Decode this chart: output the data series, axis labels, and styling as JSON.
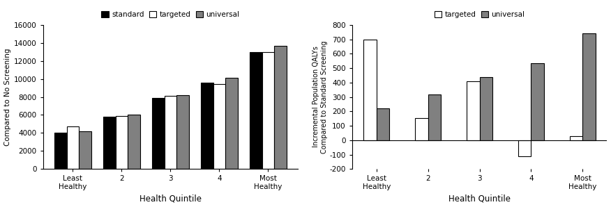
{
  "left": {
    "categories": [
      "Least\nHealthy",
      "2",
      "3",
      "4",
      "Most\nHealthy"
    ],
    "standard": [
      4000,
      5800,
      7900,
      9600,
      13000
    ],
    "targeted": [
      4700,
      5900,
      8100,
      9400,
      13000
    ],
    "universal": [
      4200,
      6000,
      8200,
      10100,
      13700
    ],
    "ylabel": "Compared to No Screening",
    "xlabel": "Health Quintile",
    "ylim": [
      0,
      16000
    ],
    "yticks": [
      0,
      2000,
      4000,
      6000,
      8000,
      10000,
      12000,
      14000,
      16000
    ],
    "legend_labels": [
      "standard",
      "targeted",
      "universal"
    ],
    "legend_colors": [
      "#000000",
      "#ffffff",
      "#808080"
    ]
  },
  "right": {
    "categories": [
      "Least\nHealthy",
      "2",
      "3",
      "4",
      "Most\nHealthy"
    ],
    "targeted": [
      700,
      155,
      410,
      -110,
      30
    ],
    "universal": [
      220,
      315,
      435,
      535,
      740
    ],
    "ylabel": "Incremental Population QALYs\nCompared to Standard Screening",
    "xlabel": "Health Quintile",
    "ylim": [
      -200,
      800
    ],
    "yticks": [
      -200,
      -100,
      0,
      100,
      200,
      300,
      400,
      500,
      600,
      700,
      800
    ],
    "legend_labels": [
      "targeted",
      "universal"
    ],
    "legend_colors": [
      "#ffffff",
      "#808080"
    ]
  },
  "bar_width": 0.25,
  "edge_color": "#000000",
  "background_color": "#ffffff"
}
